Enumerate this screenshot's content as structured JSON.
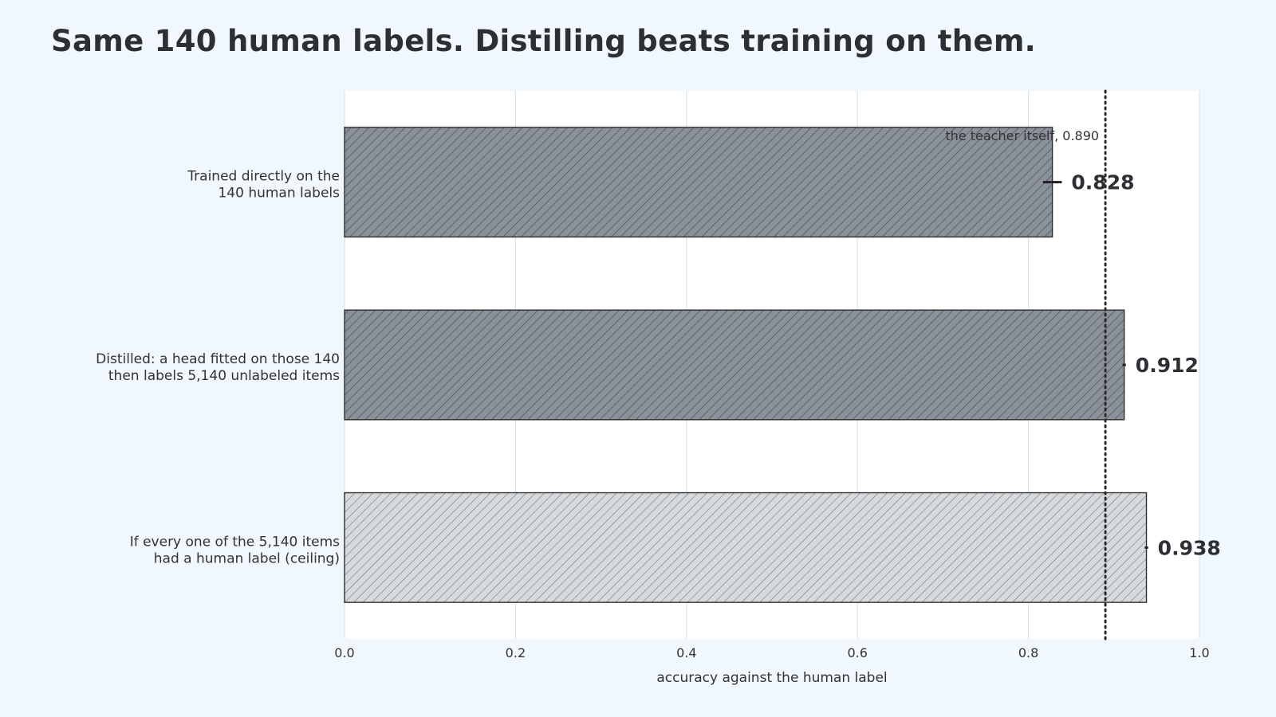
{
  "chart_data": {
    "type": "bar",
    "orientation": "horizontal",
    "title": "Same 140 human labels. Distilling beats training on them.",
    "xlabel": "accuracy against the human label",
    "xlim": [
      0.0,
      1.0
    ],
    "x_ticks": [
      "0.0",
      "0.2",
      "0.4",
      "0.6",
      "0.8",
      "1.0"
    ],
    "grid": "vertical",
    "categories": [
      [
        "Trained directly on the",
        "140 human labels"
      ],
      [
        "Distilled: a head fitted on those 140",
        "then labels 5,140 unlabeled items"
      ],
      [
        "If every one of the 5,140 items",
        "had a human label (ceiling)"
      ]
    ],
    "values": [
      0.828,
      0.912,
      0.938
    ],
    "value_labels": [
      "0.828",
      "0.912",
      "0.938"
    ],
    "error_bars": [
      0.011,
      0.002,
      0.002
    ],
    "bar_styles": [
      "dark",
      "dark",
      "light"
    ],
    "reference_line": {
      "value": 0.89,
      "label": "the teacher itself, 0.890",
      "style": "dotted"
    },
    "colors": {
      "dark_fill": "#8a9199",
      "light_fill": "#d7dadd",
      "stroke": "#2e2e2e",
      "grid": "#cfdfea",
      "background": "#f0f7fd",
      "plot_background": "#ffffff"
    }
  }
}
